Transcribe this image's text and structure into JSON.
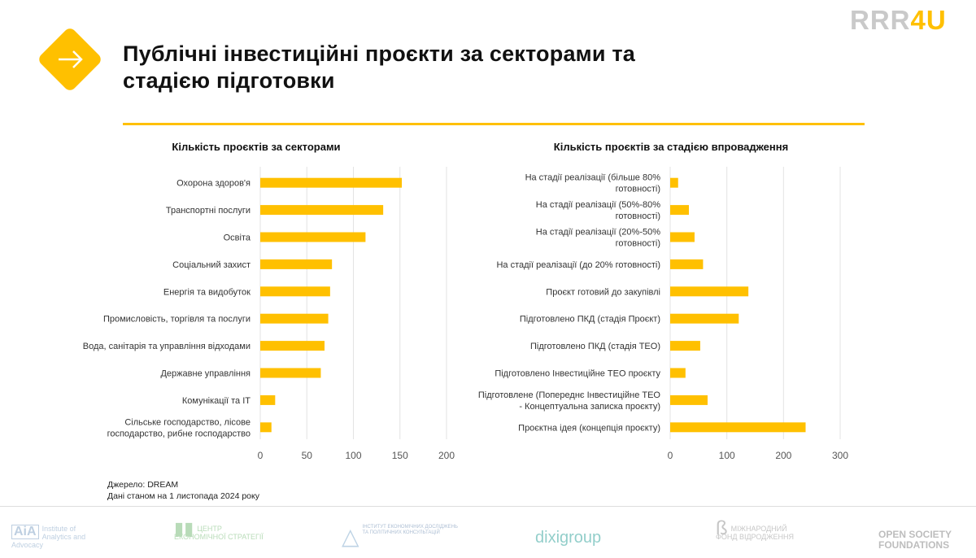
{
  "header": {
    "title_line1": "Публічні інвестиційні проєкти за секторами та",
    "title_line2": "стадією підготовки",
    "brand_logo": {
      "part1": "RRR",
      "part2": "4U"
    },
    "icon": "arrow-right-icon",
    "accent_color": "#FFC000"
  },
  "chart_data": [
    {
      "type": "bar",
      "orientation": "horizontal",
      "title": "Кількість проєктів за секторами",
      "categories": [
        "Охорона здоров'я",
        "Транспортні послуги",
        "Освіта",
        "Соціальний захист",
        "Енергія та видобуток",
        "Промисловість, торгівля та послуги",
        "Вода, санітарія та управління відходами",
        "Державне управління",
        "Комунікації та ІТ",
        "Сільське господарство, лісове господарство, рибне господарство"
      ],
      "values": [
        152,
        132,
        113,
        77,
        75,
        73,
        69,
        65,
        16,
        12
      ],
      "xlim": [
        0,
        200
      ],
      "xticks": [
        0,
        50,
        100,
        150,
        200
      ],
      "grid": true,
      "color": "#FFC000"
    },
    {
      "type": "bar",
      "orientation": "horizontal",
      "title": "Кількість проєктів за стадією впровадження",
      "categories": [
        "На стадії реалізації (більше 80% готовності)",
        "На стадії реалізації (50%-80% готовності)",
        "На стадії реалізації (20%-50% готовності)",
        "На стадії реалізації (до 20% готовності)",
        "Проєкт готовий до закупівлі",
        "Підготовлено ПКД (стадія Проєкт)",
        "Підготовлено ПКД (стадія ТЕО)",
        "Підготовлено Інвестиційне ТЕО проєкту",
        "Підготовлене (Попереднє Інвестиційне ТЕО - Концептуальна записка проєкту)",
        "Проєктна ідея (концепція проєкту)"
      ],
      "values": [
        14,
        33,
        43,
        58,
        138,
        121,
        53,
        27,
        66,
        239
      ],
      "xlim": [
        0,
        300
      ],
      "xticks": [
        0,
        100,
        200,
        300
      ],
      "grid": true,
      "color": "#FFC000"
    }
  ],
  "source": {
    "line1": "Джерело: DREAM",
    "line2": "Дані станом на 1 листопада 2024 року"
  },
  "footer_logos": [
    "Institute of Analytics and Advocacy",
    "ЦЕНТР ЕКОНОМІЧНОЇ СТРАТЕГІЇ",
    "ІНСТИТУТ ЕКОНОМІЧНИХ ДОСЛІДЖЕНЬ ТА ПОЛІТИЧНИХ КОНСУЛЬТАЦІЙ",
    "dixigroup",
    "МІЖНАРОДНИЙ ФОНД ВІДРОДЖЕННЯ",
    "OPEN SOCIETY FOUNDATIONS"
  ]
}
